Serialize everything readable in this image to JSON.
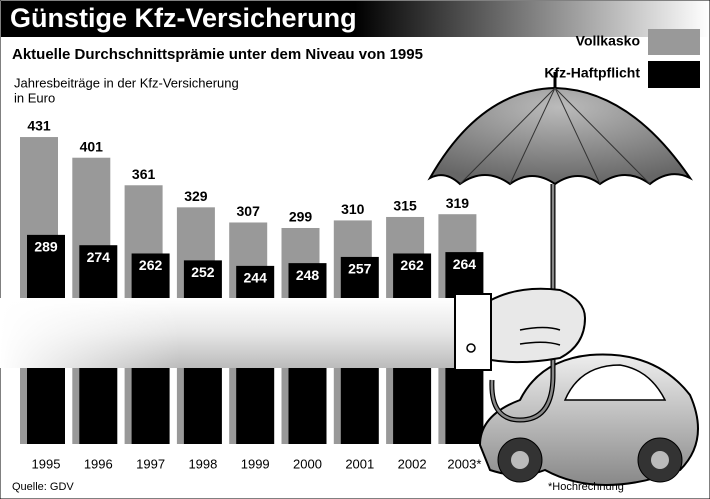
{
  "chart_data": {
    "type": "bar",
    "title": "Günstige Kfz-Versicherung",
    "subtitle": "Aktuelle Durchschnittsprämie unter dem Niveau von 1995",
    "y_label": [
      "Jahresbeiträge in der Kfz-Versicherung",
      "in Euro"
    ],
    "categories": [
      "1995",
      "1996",
      "1997",
      "1998",
      "1999",
      "2000",
      "2001",
      "2002",
      "2003*"
    ],
    "series": [
      {
        "name": "Vollkasko",
        "color": "#999999",
        "values": [
          431,
          401,
          361,
          329,
          307,
          299,
          310,
          315,
          319
        ]
      },
      {
        "name": "Kfz-Haftpflicht",
        "color": "#000000",
        "values": [
          289,
          274,
          262,
          252,
          244,
          248,
          257,
          262,
          264
        ]
      }
    ],
    "source": "Quelle: GDV",
    "footnote": "*Hochrechnung"
  }
}
